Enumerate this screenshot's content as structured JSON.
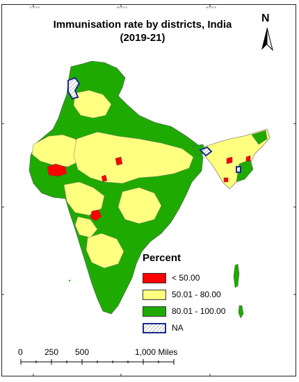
{
  "map": {
    "title_line1": "Immunisation rate by districts, India",
    "title_line2": "(2019-21)",
    "north_label": "N"
  },
  "legend": {
    "title": "Percent",
    "items": [
      {
        "label": "< 50.00",
        "color": "#ff0000",
        "pattern": "solid"
      },
      {
        "label": "50.01 - 80.00",
        "color": "#ffff80",
        "pattern": "solid"
      },
      {
        "label": "80.01 - 100.00",
        "color": "#1faa00",
        "pattern": "solid"
      },
      {
        "label": "NA",
        "color": "#1a2a8a",
        "pattern": "hatched"
      }
    ]
  },
  "scale": {
    "labels": [
      "0",
      "250",
      "500",
      "1,000 Miles"
    ]
  },
  "graticule": {
    "top_labels": [
      "70°0'0\"E",
      "80°0'0\"E",
      "90°0'0\"E"
    ]
  }
}
